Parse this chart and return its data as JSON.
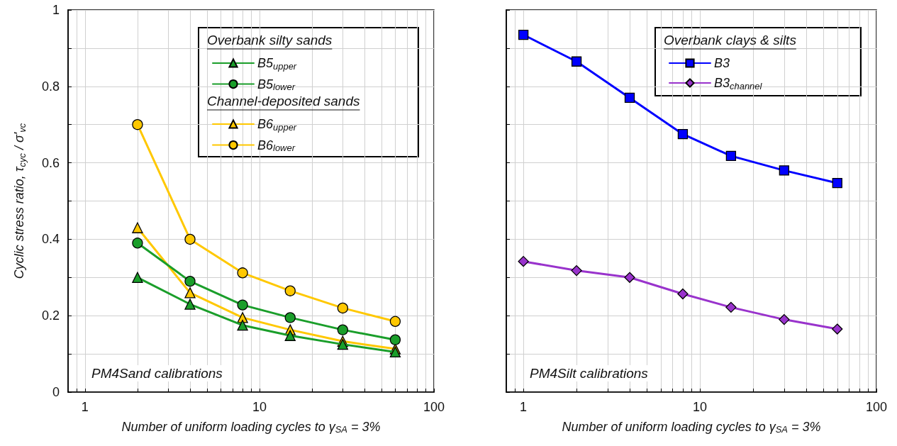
{
  "chart_data": [
    {
      "type": "line",
      "ylabel": "Cyclic stress ratio, τ$_{cyc}$ / σ'$_{vc}$",
      "xlabel": "Number of uniform loading cycles to γ$_{SA}$ = 3%",
      "log": "x",
      "xlim": [
        0.8,
        100
      ],
      "ylim": [
        0,
        1
      ],
      "xticks": [
        {
          "value": 0.9,
          "label": null
        },
        1,
        {
          "value": 2,
          "label": null
        },
        {
          "value": 3,
          "label": null
        },
        {
          "value": 4,
          "label": null
        },
        {
          "value": 5,
          "label": null
        },
        {
          "value": 6,
          "label": null
        },
        {
          "value": 7,
          "label": null
        },
        {
          "value": 8,
          "label": null
        },
        {
          "value": 9,
          "label": null
        },
        10,
        {
          "value": 20,
          "label": null
        },
        {
          "value": 30,
          "label": null
        },
        {
          "value": 40,
          "label": null
        },
        {
          "value": 50,
          "label": null
        },
        {
          "value": 60,
          "label": null
        },
        {
          "value": 70,
          "label": null
        },
        {
          "value": 80,
          "label": null
        },
        {
          "value": 90,
          "label": null
        },
        100
      ],
      "yticks": [
        0,
        {
          "value": 0.1,
          "label": null
        },
        0.2,
        {
          "value": 0.3,
          "label": null
        },
        0.4,
        {
          "value": 0.5,
          "label": null
        },
        0.6,
        {
          "value": 0.7,
          "label": null
        },
        0.8,
        {
          "value": 0.9,
          "label": null
        },
        1
      ],
      "grid": true,
      "legend": "top right",
      "line_style": "solid",
      "annotations": [
        "Overbank silty sands",
        "Channel-deposited sands",
        "PM4Sand calibrations"
      ],
      "x": [
        2,
        4,
        8,
        15,
        30,
        60
      ],
      "series": [
        {
          "name": "B5$_{upper}$",
          "color": "#1a9e2a",
          "marker": "triangle",
          "values": [
            0.3,
            0.23,
            0.175,
            0.148,
            0.125,
            0.105
          ]
        },
        {
          "name": "B5$_{lower}$",
          "color": "#1a9e2a",
          "marker": "circle",
          "values": [
            0.39,
            0.29,
            0.228,
            0.195,
            0.163,
            0.137
          ]
        },
        {
          "name": "B6$_{upper}$",
          "color": "#ffc800",
          "marker": "triangle",
          "values": [
            0.43,
            0.26,
            0.195,
            0.163,
            0.133,
            0.113
          ]
        },
        {
          "name": "B6$_{lower}$",
          "color": "#ffc800",
          "marker": "circle",
          "values": [
            0.7,
            0.4,
            0.312,
            0.265,
            0.22,
            0.185
          ]
        }
      ]
    },
    {
      "type": "line",
      "xlabel": "Number of uniform loading cycles to γ$_{SA}$ = 3%",
      "log": "x",
      "xlim": [
        0.8,
        100
      ],
      "ylim": [
        0,
        1
      ],
      "tick_labels": "x",
      "xticks": [
        {
          "value": 0.9,
          "label": null
        },
        1,
        {
          "value": 2,
          "label": null
        },
        {
          "value": 3,
          "label": null
        },
        {
          "value": 4,
          "label": null
        },
        {
          "value": 5,
          "label": null
        },
        {
          "value": 6,
          "label": null
        },
        {
          "value": 7,
          "label": null
        },
        {
          "value": 8,
          "label": null
        },
        {
          "value": 9,
          "label": null
        },
        10,
        {
          "value": 20,
          "label": null
        },
        {
          "value": 30,
          "label": null
        },
        {
          "value": 40,
          "label": null
        },
        {
          "value": 50,
          "label": null
        },
        {
          "value": 60,
          "label": null
        },
        {
          "value": 70,
          "label": null
        },
        {
          "value": 80,
          "label": null
        },
        {
          "value": 90,
          "label": null
        },
        100
      ],
      "yticks": [
        0,
        {
          "value": 0.1,
          "label": null
        },
        0.2,
        {
          "value": 0.3,
          "label": null
        },
        0.4,
        {
          "value": 0.5,
          "label": null
        },
        0.6,
        {
          "value": 0.7,
          "label": null
        },
        0.8,
        {
          "value": 0.9,
          "label": null
        },
        1
      ],
      "grid": true,
      "legend": "top right",
      "line_style": "solid",
      "annotations": [
        "Overbank clays & silts",
        "PM4Silt calibrations"
      ],
      "x": [
        1,
        2,
        4,
        8,
        15,
        30,
        60
      ],
      "series": [
        {
          "name": "B3",
          "color": "#0000ff",
          "marker": "square",
          "values": [
            0.935,
            0.865,
            0.77,
            0.675,
            0.618,
            0.58,
            0.547
          ]
        },
        {
          "name": "B3$_{channel}$",
          "color": "#9933cc",
          "marker": "diamond",
          "values": [
            0.342,
            0.318,
            0.3,
            0.257,
            0.222,
            0.19,
            0.165
          ]
        }
      ]
    }
  ]
}
